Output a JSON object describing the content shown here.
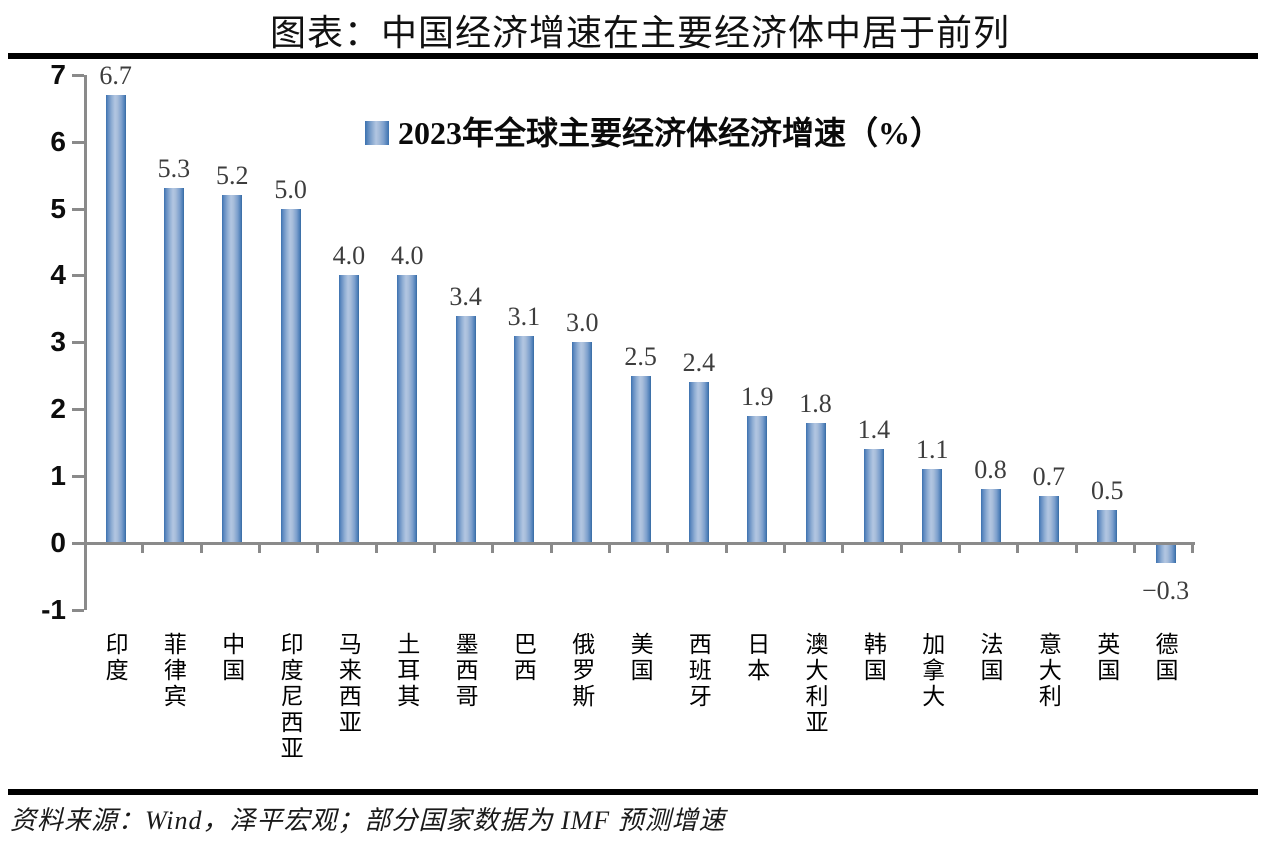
{
  "header": {
    "title": "图表：中国经济增速在主要经济体中居于前列"
  },
  "legend": {
    "label": "2023年全球主要经济体经济增速（%）",
    "marker_color": "#4f81bd"
  },
  "footer": {
    "source_note": "资料来源：Wind，泽平宏观；部分国家数据为 IMF 预测增速"
  },
  "colors": {
    "bar_edge": "#3b71af",
    "bar_center": "#b2c6e1",
    "axis": "#8a8a8a",
    "value_label": "#3d3d3d",
    "text": "#000000",
    "rule": "#000000"
  },
  "chart_data": {
    "type": "bar",
    "title": "2023年全球主要经济体经济增速（%）",
    "categories": [
      "印度",
      "菲律宾",
      "中国",
      "印度尼西亚",
      "马来西亚",
      "土耳其",
      "墨西哥",
      "巴西",
      "俄罗斯",
      "美国",
      "西班牙",
      "日本",
      "澳大利亚",
      "韩国",
      "加拿大",
      "法国",
      "意大利",
      "英国",
      "德国"
    ],
    "values": [
      6.7,
      5.3,
      5.2,
      5.0,
      4.0,
      4.0,
      3.4,
      3.1,
      3.0,
      2.5,
      2.4,
      1.9,
      1.8,
      1.4,
      1.1,
      0.8,
      0.7,
      0.5,
      -0.3
    ],
    "value_labels": [
      "6.7",
      "5.3",
      "5.2",
      "5.0",
      "4.0",
      "4.0",
      "3.4",
      "3.1",
      "3.0",
      "2.5",
      "2.4",
      "1.9",
      "1.8",
      "1.4",
      "1.1",
      "0.8",
      "0.7",
      "0.5",
      "−0.3"
    ],
    "xlabel": "",
    "ylabel": "",
    "ylim": [
      -1,
      7
    ],
    "yticks": [
      7,
      6,
      5,
      4,
      3,
      2,
      1,
      0,
      -1
    ],
    "grid": false,
    "legend_position": "top-center"
  }
}
